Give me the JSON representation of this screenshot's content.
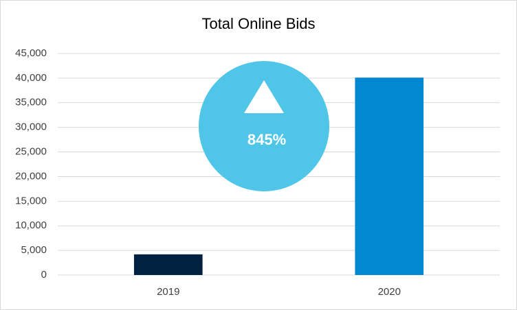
{
  "chart_data": {
    "type": "bar",
    "title": "Total Online Bids",
    "categories": [
      "2019",
      "2020"
    ],
    "values": [
      4200,
      40100
    ],
    "colors": [
      "#002240",
      "#0088d1"
    ],
    "ylim": [
      0,
      45000
    ],
    "yticks": [
      0,
      {
        "value": 5000,
        "label": "5,000"
      },
      {
        "value": 10000,
        "label": "10,000"
      },
      {
        "value": 15000,
        "label": "15,000"
      },
      {
        "value": 20000,
        "label": "20,000"
      },
      {
        "value": 25000,
        "label": "25,000"
      },
      {
        "value": 30000,
        "label": "30,000"
      },
      {
        "value": 35000,
        "label": "35,000"
      },
      {
        "value": 40000,
        "label": "40,000"
      },
      {
        "value": 45000,
        "label": "45,000"
      }
    ],
    "grid": true,
    "annotation": "845%"
  }
}
